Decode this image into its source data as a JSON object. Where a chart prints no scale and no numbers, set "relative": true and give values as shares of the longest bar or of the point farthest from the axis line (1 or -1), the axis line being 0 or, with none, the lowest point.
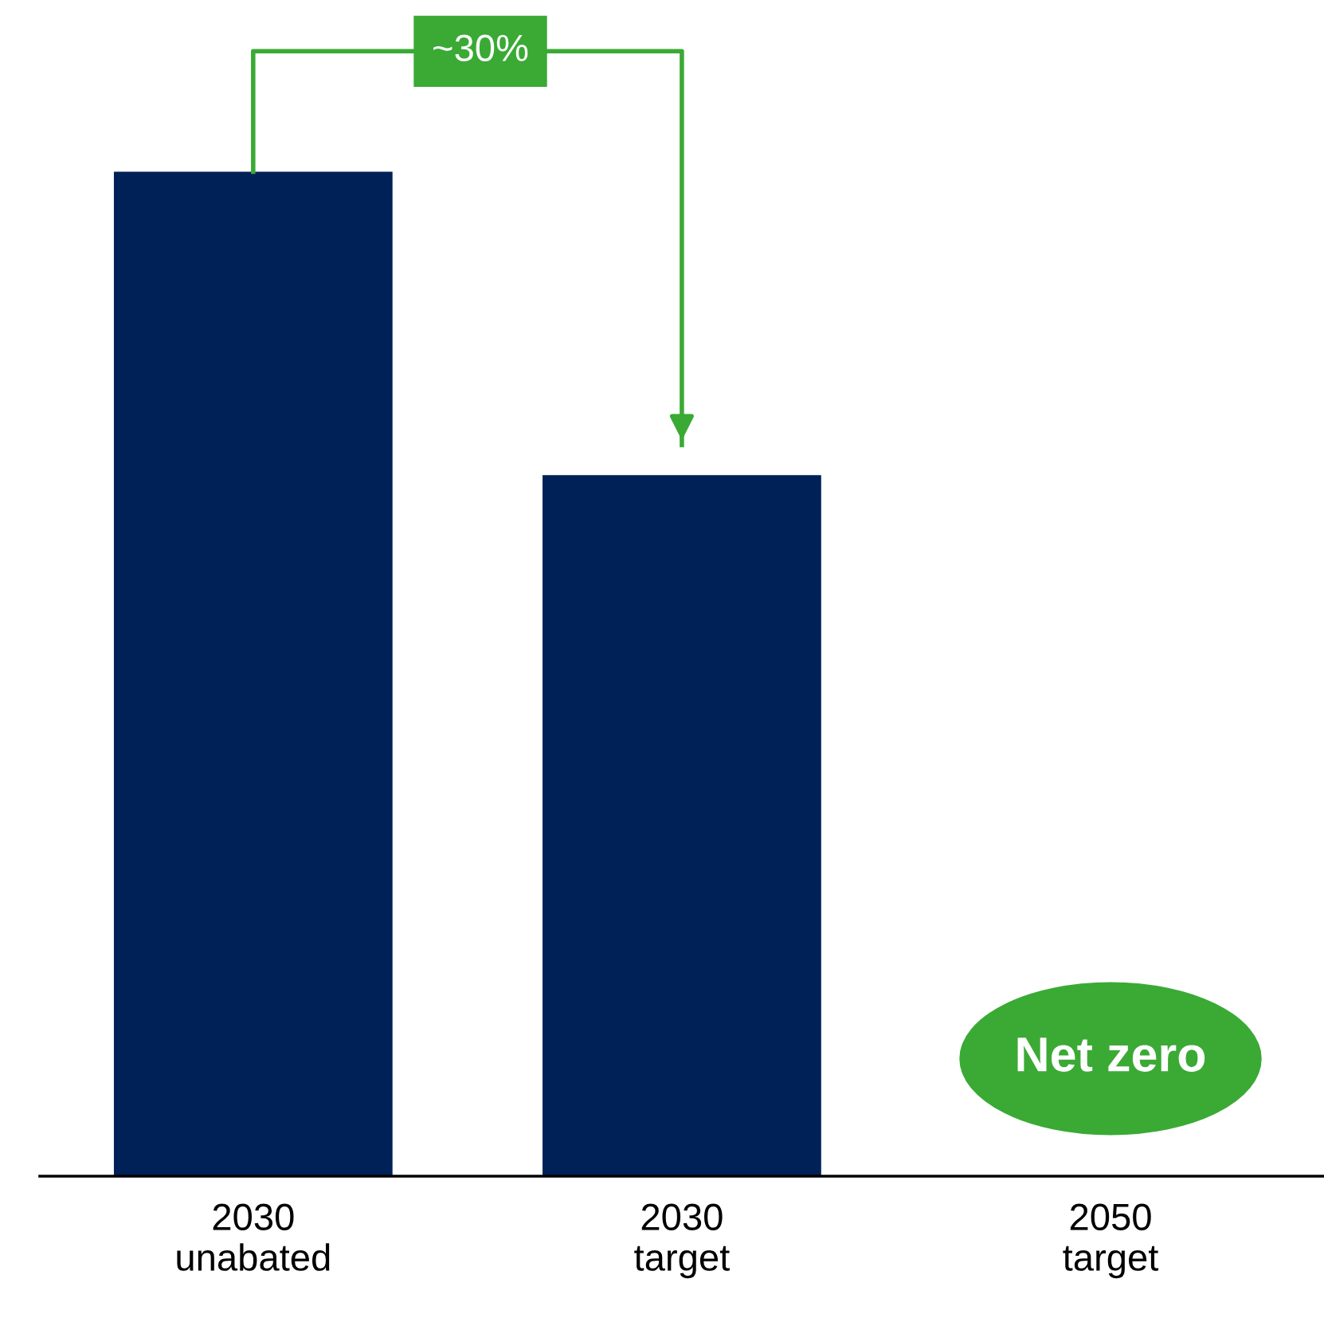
{
  "chart_data": {
    "type": "bar",
    "relative": true,
    "categories": [
      "2030\nunabated",
      "2030\ntarget",
      "2050\ntarget"
    ],
    "values": [
      1,
      0.698,
      0
    ],
    "color": "#002157",
    "annotations": [
      "~30%",
      {
        "text": "Net zero",
        "x": "2050\ntarget",
        "y": 0
      }
    ]
  }
}
